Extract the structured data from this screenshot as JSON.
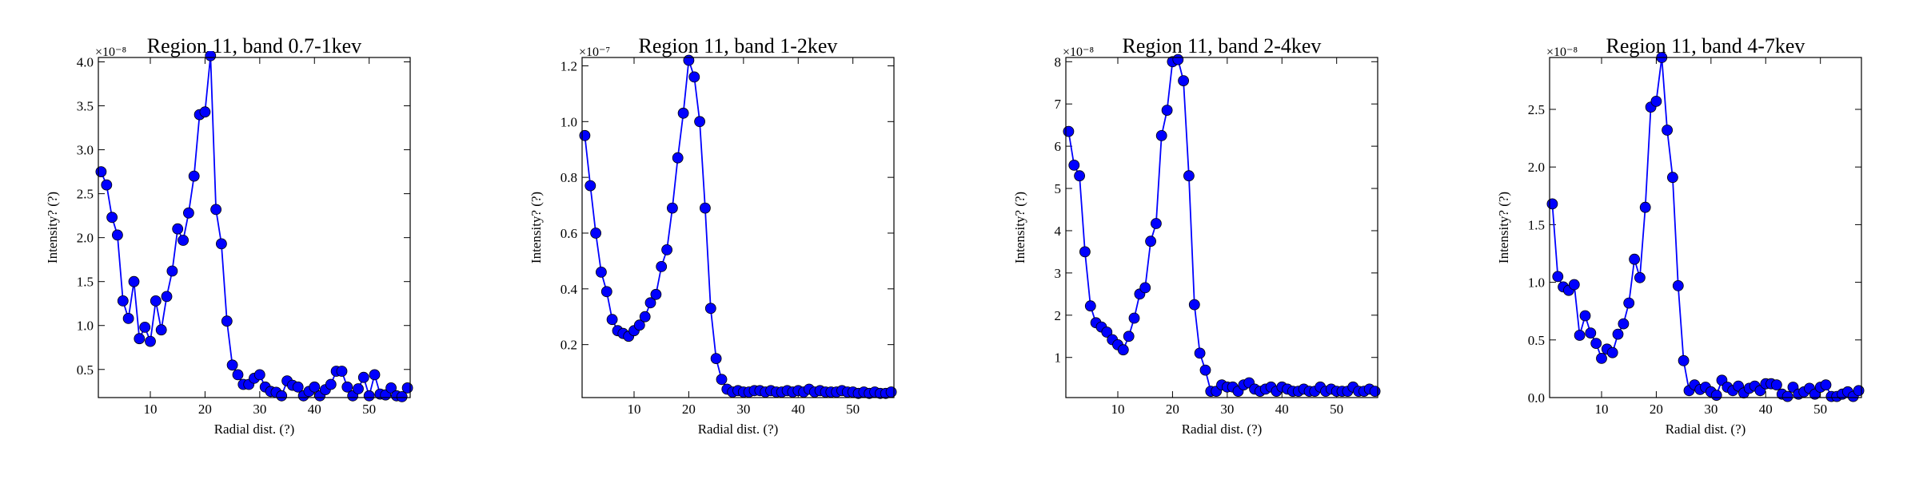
{
  "style": {
    "line_color": "#0000ff",
    "marker_color": "#0000ff",
    "marker_edge": "#000000"
  },
  "chart_data": [
    {
      "type": "line",
      "title": "Region 11, band 0.7-1kev",
      "xlabel": "Radial dist. (?)",
      "ylabel": "Intensity? (?)",
      "offset": "×10⁻⁸",
      "xlim": [
        0.5,
        57.5
      ],
      "ylim": [
        0.18,
        4.05
      ],
      "xticks": [
        10,
        20,
        30,
        40,
        50
      ],
      "yticks": [
        0.5,
        1.0,
        1.5,
        2.0,
        2.5,
        3.0,
        3.5,
        4.0
      ],
      "yticklabels": [
        "0.5",
        "1.0",
        "1.5",
        "2.0",
        "2.5",
        "3.0",
        "3.5",
        "4.0"
      ],
      "x": [
        1,
        2,
        3,
        4,
        5,
        6,
        7,
        8,
        9,
        10,
        11,
        12,
        13,
        14,
        15,
        16,
        17,
        18,
        19,
        20,
        21,
        22,
        23,
        24,
        25,
        26,
        27,
        28,
        29,
        30,
        31,
        32,
        33,
        34,
        35,
        36,
        37,
        38,
        39,
        40,
        41,
        42,
        43,
        44,
        45,
        46,
        47,
        48,
        49,
        50,
        51,
        52,
        53,
        54,
        55,
        56,
        57
      ],
      "y": [
        2.75,
        2.6,
        2.23,
        2.03,
        1.28,
        1.08,
        1.5,
        0.85,
        0.98,
        0.82,
        1.28,
        0.95,
        1.33,
        1.62,
        2.1,
        1.97,
        2.28,
        2.7,
        3.4,
        3.43,
        4.07,
        2.32,
        1.93,
        1.05,
        0.55,
        0.44,
        0.33,
        0.33,
        0.4,
        0.44,
        0.3,
        0.25,
        0.24,
        0.2,
        0.37,
        0.32,
        0.3,
        0.2,
        0.25,
        0.3,
        0.2,
        0.27,
        0.33,
        0.48,
        0.48,
        0.3,
        0.2,
        0.28,
        0.41,
        0.2,
        0.44,
        0.22,
        0.21,
        0.29,
        0.2,
        0.19,
        0.29
      ]
    },
    {
      "type": "line",
      "title": "Region 11, band 1-2kev",
      "xlabel": "Radial dist. (?)",
      "ylabel": "Intensity? (?)",
      "offset": "×10⁻⁷",
      "xlim": [
        0.5,
        57.5
      ],
      "ylim": [
        0.01,
        1.23
      ],
      "xticks": [
        10,
        20,
        30,
        40,
        50
      ],
      "yticks": [
        0.2,
        0.4,
        0.6,
        0.8,
        1.0,
        1.2
      ],
      "yticklabels": [
        "0.2",
        "0.4",
        "0.6",
        "0.8",
        "1.0",
        "1.2"
      ],
      "x": [
        1,
        2,
        3,
        4,
        5,
        6,
        7,
        8,
        9,
        10,
        11,
        12,
        13,
        14,
        15,
        16,
        17,
        18,
        19,
        20,
        21,
        22,
        23,
        24,
        25,
        26,
        27,
        28,
        29,
        30,
        31,
        32,
        33,
        34,
        35,
        36,
        37,
        38,
        39,
        40,
        41,
        42,
        43,
        44,
        45,
        46,
        47,
        48,
        49,
        50,
        51,
        52,
        53,
        54,
        55,
        56,
        57
      ],
      "y": [
        0.95,
        0.77,
        0.6,
        0.46,
        0.39,
        0.29,
        0.25,
        0.24,
        0.23,
        0.25,
        0.27,
        0.3,
        0.35,
        0.38,
        0.48,
        0.54,
        0.69,
        0.87,
        1.03,
        1.22,
        1.16,
        1.0,
        0.69,
        0.33,
        0.15,
        0.075,
        0.04,
        0.03,
        0.035,
        0.03,
        0.03,
        0.035,
        0.035,
        0.03,
        0.035,
        0.03,
        0.03,
        0.035,
        0.03,
        0.035,
        0.03,
        0.04,
        0.03,
        0.035,
        0.03,
        0.03,
        0.03,
        0.035,
        0.03,
        0.03,
        0.025,
        0.03,
        0.025,
        0.03,
        0.025,
        0.025,
        0.03
      ]
    },
    {
      "type": "line",
      "title": "Region 11, band 2-4kev",
      "xlabel": "Radial dist. (?)",
      "ylabel": "Intensity? (?)",
      "offset": "×10⁻⁸",
      "xlim": [
        0.5,
        57.5
      ],
      "ylim": [
        0.05,
        8.1
      ],
      "xticks": [
        10,
        20,
        30,
        40,
        50
      ],
      "yticks": [
        1,
        2,
        3,
        4,
        5,
        6,
        7,
        8
      ],
      "yticklabels": [
        "1",
        "2",
        "3",
        "4",
        "5",
        "6",
        "7",
        "8"
      ],
      "x": [
        1,
        2,
        3,
        4,
        5,
        6,
        7,
        8,
        9,
        10,
        11,
        12,
        13,
        14,
        15,
        16,
        17,
        18,
        19,
        20,
        21,
        22,
        23,
        24,
        25,
        26,
        27,
        28,
        29,
        30,
        31,
        32,
        33,
        34,
        35,
        36,
        37,
        38,
        39,
        40,
        41,
        42,
        43,
        44,
        45,
        46,
        47,
        48,
        49,
        50,
        51,
        52,
        53,
        54,
        55,
        56,
        57
      ],
      "y": [
        6.35,
        5.55,
        5.3,
        3.5,
        2.22,
        1.82,
        1.72,
        1.6,
        1.42,
        1.3,
        1.18,
        1.5,
        1.93,
        2.5,
        2.65,
        3.75,
        4.17,
        6.25,
        6.85,
        8.0,
        8.05,
        7.55,
        5.3,
        2.25,
        1.1,
        0.7,
        0.2,
        0.2,
        0.35,
        0.3,
        0.3,
        0.2,
        0.35,
        0.4,
        0.25,
        0.2,
        0.25,
        0.3,
        0.2,
        0.3,
        0.25,
        0.2,
        0.2,
        0.25,
        0.2,
        0.2,
        0.3,
        0.2,
        0.25,
        0.2,
        0.2,
        0.2,
        0.3,
        0.2,
        0.2,
        0.25,
        0.2
      ]
    },
    {
      "type": "line",
      "title": "Region 11, band 4-7kev",
      "xlabel": "Radial dist. (?)",
      "ylabel": "Intensity? (?)",
      "offset": "×10⁻⁸",
      "xlim": [
        0.5,
        57.5
      ],
      "ylim": [
        0.0,
        2.95
      ],
      "xticks": [
        10,
        20,
        30,
        40,
        50
      ],
      "yticks": [
        0.0,
        0.5,
        1.0,
        1.5,
        2.0,
        2.5
      ],
      "yticklabels": [
        "0.0",
        "0.5",
        "1.0",
        "1.5",
        "2.0",
        "2.5"
      ],
      "x": [
        1,
        2,
        3,
        4,
        5,
        6,
        7,
        8,
        9,
        10,
        11,
        12,
        13,
        14,
        15,
        16,
        17,
        18,
        19,
        20,
        21,
        22,
        23,
        24,
        25,
        26,
        27,
        28,
        29,
        30,
        31,
        32,
        33,
        34,
        35,
        36,
        37,
        38,
        39,
        40,
        41,
        42,
        43,
        44,
        45,
        46,
        47,
        48,
        49,
        50,
        51,
        52,
        53,
        54,
        55,
        56,
        57
      ],
      "y": [
        1.68,
        1.05,
        0.96,
        0.93,
        0.98,
        0.54,
        0.71,
        0.56,
        0.47,
        0.34,
        0.42,
        0.39,
        0.55,
        0.64,
        0.82,
        1.2,
        1.04,
        1.65,
        2.52,
        2.57,
        2.95,
        2.32,
        1.91,
        0.97,
        0.32,
        0.06,
        0.11,
        0.07,
        0.09,
        0.05,
        0.02,
        0.15,
        0.09,
        0.06,
        0.1,
        0.04,
        0.08,
        0.1,
        0.06,
        0.12,
        0.12,
        0.11,
        0.03,
        0.01,
        0.09,
        0.03,
        0.05,
        0.08,
        0.03,
        0.09,
        0.11,
        0.01,
        0.01,
        0.03,
        0.05,
        0.01,
        0.06
      ]
    }
  ]
}
